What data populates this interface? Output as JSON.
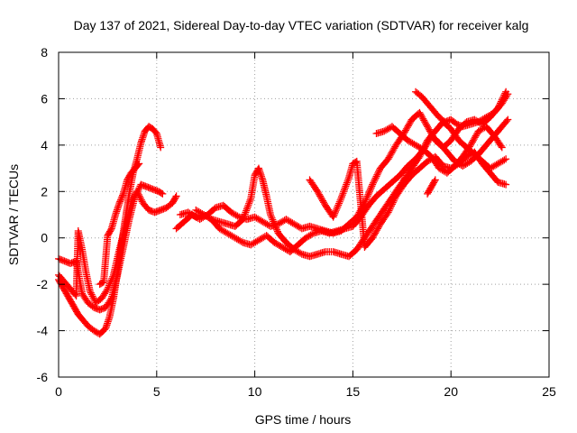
{
  "chart_data": {
    "type": "scatter",
    "title": "Day 137 of 2021, Sidereal Day-to-day VTEC variation (SDTVAR) for receiver kalg",
    "xlabel": "GPS time / hours",
    "ylabel": "SDTVAR / TECUs",
    "xlim": [
      0,
      25
    ],
    "ylim": [
      -6,
      8
    ],
    "xticks": [
      0,
      5,
      10,
      15,
      20,
      25
    ],
    "yticks": [
      -6,
      -4,
      -2,
      0,
      2,
      4,
      6,
      8
    ],
    "xtick_labels": [
      "0",
      "5",
      "10",
      "15",
      "20",
      "25"
    ],
    "ytick_labels": [
      "-6",
      "-4",
      "-2",
      "0",
      "2",
      "4",
      "6",
      "8"
    ],
    "grid": true,
    "marker": "+",
    "color": "#ff0000",
    "series": [
      {
        "x": [
          0.0,
          0.2,
          0.4,
          0.6,
          0.8,
          1.0,
          1.2,
          1.5,
          1.8,
          2.1,
          2.4,
          2.6,
          2.8,
          3.0,
          3.2,
          3.4,
          3.6,
          3.8,
          4.0,
          4.2,
          4.4,
          4.6,
          4.8,
          5.0,
          5.2
        ],
        "y": [
          -1.8,
          -2.1,
          -2.4,
          -2.7,
          -3.0,
          -3.3,
          -3.5,
          -3.8,
          -4.0,
          -4.15,
          -3.9,
          -3.4,
          -2.6,
          -1.5,
          -0.3,
          0.8,
          1.9,
          2.8,
          3.4,
          4.1,
          4.6,
          4.8,
          4.7,
          4.5,
          3.9
        ]
      },
      {
        "x": [
          0.0,
          0.3,
          0.6,
          0.9,
          1.2,
          1.5,
          1.8,
          2.1,
          2.4,
          2.7,
          3.0,
          3.3,
          3.6,
          3.9,
          4.2,
          4.5,
          4.8,
          5.1,
          5.3
        ],
        "y": [
          -0.9,
          -1.0,
          -1.1,
          -1.0,
          -2.4,
          -2.8,
          -3.0,
          -3.1,
          -3.0,
          -2.6,
          -1.6,
          -0.4,
          0.8,
          1.8,
          2.3,
          2.2,
          2.1,
          2.0,
          1.9
        ]
      },
      {
        "x": [
          0.0,
          0.3,
          0.6,
          0.9,
          1.0,
          1.2,
          1.4,
          1.6,
          1.9,
          2.2,
          2.5,
          2.8,
          3.1,
          3.4,
          3.7,
          4.0,
          4.3,
          4.6,
          4.9,
          5.2,
          5.5,
          5.8,
          6.0
        ],
        "y": [
          -1.6,
          -1.9,
          -2.2,
          -2.5,
          0.3,
          -0.5,
          -1.5,
          -2.3,
          -2.8,
          -2.6,
          -2.2,
          -1.6,
          -0.5,
          0.5,
          1.5,
          2.0,
          1.5,
          1.2,
          1.1,
          1.2,
          1.3,
          1.5,
          1.8
        ]
      },
      {
        "x": [
          2.1,
          2.3,
          2.5,
          2.7,
          2.9,
          3.1,
          3.3,
          3.5,
          3.7,
          3.9,
          4.1
        ],
        "y": [
          -2.0,
          -1.9,
          0.1,
          0.4,
          1.0,
          1.5,
          1.9,
          2.5,
          2.8,
          3.0,
          3.2
        ]
      },
      {
        "x": [
          6.0,
          6.4,
          6.8,
          7.2,
          7.6,
          8.0,
          8.4,
          8.8,
          9.2,
          9.6,
          10.0,
          10.4,
          10.8,
          11.2,
          11.6,
          12.0,
          12.4,
          12.8,
          13.2,
          13.6,
          14.0,
          14.4,
          14.8,
          15.2,
          15.6,
          16.0,
          16.4,
          16.8,
          17.2,
          17.6,
          18.0,
          18.4,
          18.8,
          19.2,
          19.6,
          20.0,
          20.4,
          20.8,
          21.2,
          21.6,
          22.0,
          22.4,
          22.8
        ],
        "y": [
          0.4,
          0.7,
          1.0,
          0.8,
          1.0,
          1.3,
          1.4,
          1.1,
          0.9,
          0.8,
          0.9,
          0.7,
          0.5,
          0.6,
          0.8,
          0.6,
          0.4,
          0.5,
          0.4,
          0.3,
          0.2,
          0.3,
          0.6,
          0.9,
          1.5,
          2.3,
          3.0,
          3.4,
          4.0,
          4.5,
          5.1,
          5.4,
          4.8,
          4.2,
          3.9,
          4.2,
          4.7,
          5.0,
          5.1,
          4.9,
          5.2,
          5.6,
          6.3
        ]
      },
      {
        "x": [
          6.2,
          6.6,
          7.0,
          7.4,
          7.8,
          8.2,
          8.6,
          9.0,
          9.4,
          9.8,
          10.0,
          10.2,
          10.4,
          10.6,
          10.8,
          11.2,
          11.6,
          12.0,
          12.4,
          12.8,
          13.2,
          13.6,
          14.0,
          14.4,
          14.8,
          15.2,
          15.6,
          16.0,
          16.4,
          16.8,
          17.2,
          17.6,
          18.0,
          18.4,
          18.8,
          19.2,
          19.6,
          20.0,
          20.4,
          20.8,
          21.2,
          21.6,
          22.0,
          22.4,
          22.8
        ],
        "y": [
          1.0,
          1.1,
          0.9,
          1.0,
          0.8,
          0.7,
          0.6,
          0.5,
          0.8,
          1.7,
          2.7,
          3.0,
          2.5,
          1.8,
          1.0,
          0.2,
          -0.2,
          -0.5,
          -0.7,
          -0.8,
          -0.7,
          -0.6,
          -0.6,
          -0.7,
          -0.8,
          -0.5,
          0.0,
          0.5,
          1.0,
          1.5,
          2.0,
          2.5,
          3.0,
          3.5,
          4.2,
          4.6,
          5.0,
          4.7,
          4.2,
          3.9,
          3.6,
          3.3,
          3.0,
          3.2,
          3.4
        ]
      },
      {
        "x": [
          7.0,
          7.4,
          7.8,
          8.2,
          8.6,
          9.0,
          9.4,
          9.8,
          10.2,
          10.6,
          11.0,
          11.4,
          11.8,
          12.2,
          12.6,
          13.0,
          13.4,
          13.8,
          14.2,
          14.6,
          15.0,
          15.4,
          15.8,
          16.2,
          16.6,
          17.0,
          17.4,
          17.8,
          18.2,
          18.6,
          19.0,
          19.4,
          19.8,
          20.2,
          20.6,
          21.0,
          21.4,
          21.8,
          22.2,
          22.6,
          22.9
        ],
        "y": [
          1.2,
          1.0,
          0.8,
          0.4,
          0.2,
          0.0,
          -0.2,
          -0.3,
          -0.1,
          0.1,
          -0.2,
          -0.4,
          -0.6,
          -0.3,
          0.0,
          0.2,
          0.3,
          0.2,
          0.3,
          0.4,
          0.5,
          0.9,
          1.4,
          1.8,
          2.1,
          2.4,
          2.7,
          3.1,
          3.4,
          3.8,
          4.4,
          4.1,
          3.7,
          3.3,
          3.1,
          3.3,
          3.6,
          4.0,
          4.4,
          4.8,
          5.1
        ]
      },
      {
        "x": [
          12.8,
          13.2,
          13.6,
          14.0,
          14.4,
          14.8,
          15.0,
          15.2,
          15.6,
          16.0,
          16.4,
          16.8,
          17.2,
          17.6,
          18.0,
          18.4,
          18.8,
          19.2,
          19.6,
          20.0,
          20.4,
          20.8,
          21.2,
          21.6,
          22.0,
          22.4,
          22.8
        ],
        "y": [
          2.5,
          2.0,
          1.4,
          0.9,
          1.7,
          2.6,
          3.2,
          3.3,
          -0.4,
          0.0,
          0.6,
          1.1,
          1.8,
          2.3,
          2.7,
          3.0,
          3.3,
          3.5,
          3.1,
          3.0,
          3.2,
          3.5,
          3.7,
          3.2,
          2.8,
          2.4,
          2.3
        ]
      },
      {
        "x": [
          16.2,
          16.6,
          17.0,
          17.4,
          17.8,
          18.2,
          18.6,
          19.0,
          19.4,
          19.8,
          20.2,
          20.6,
          21.0,
          21.4,
          21.8,
          22.2,
          22.6
        ],
        "y": [
          4.5,
          4.6,
          4.8,
          4.5,
          4.2,
          4.0,
          3.8,
          3.5,
          3.0,
          2.8,
          3.1,
          3.5,
          4.0,
          4.6,
          4.8,
          4.4,
          3.9
        ]
      },
      {
        "x": [
          18.2,
          18.5,
          18.8,
          19.1,
          19.4,
          19.7,
          20.0,
          20.3,
          20.6,
          21.0,
          21.4,
          21.8,
          22.2,
          22.6,
          22.9
        ],
        "y": [
          6.3,
          6.1,
          5.8,
          5.5,
          5.2,
          5.0,
          5.1,
          4.9,
          4.8,
          4.9,
          5.0,
          5.2,
          5.4,
          5.8,
          6.2
        ]
      },
      {
        "x": [
          18.8,
          19.0,
          19.2
        ],
        "y": [
          1.9,
          2.2,
          2.5
        ]
      }
    ]
  }
}
